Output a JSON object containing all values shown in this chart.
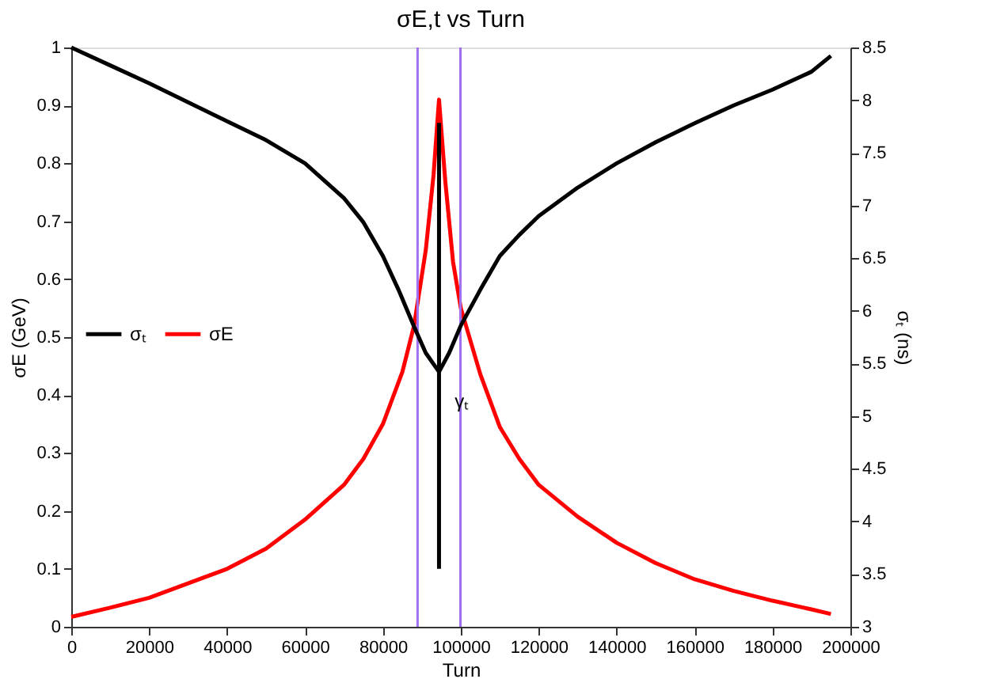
{
  "chart_data": {
    "type": "line",
    "title": "σE,t vs Turn",
    "xlabel": "Turn",
    "ylabel": "σE (GeV)",
    "y2label": "σₜ (ns)",
    "xlim": [
      0,
      200000
    ],
    "xticks": [
      0,
      20000,
      40000,
      60000,
      80000,
      100000,
      120000,
      140000,
      160000,
      180000,
      200000
    ],
    "ylim": [
      0,
      1
    ],
    "yticks": [
      0,
      0.1,
      0.2,
      0.3,
      0.4,
      0.5,
      0.6,
      0.7,
      0.8,
      0.9,
      1
    ],
    "y2lim": [
      3,
      8.5
    ],
    "y2ticks": [
      3,
      3.5,
      4,
      4.5,
      5,
      5.5,
      6,
      6.5,
      7,
      7.5,
      8,
      8.5
    ],
    "grid": false,
    "legend": "left",
    "marker": "none",
    "line_style": "solid",
    "series": [
      {
        "name": "σₜ",
        "color": "#000000",
        "axis": "y2",
        "x": [
          0,
          10000,
          20000,
          30000,
          40000,
          50000,
          60000,
          70000,
          75000,
          80000,
          84000,
          88000,
          91000,
          94400,
          97000,
          100000,
          105000,
          110000,
          115000,
          120000,
          130000,
          140000,
          150000,
          160000,
          170000,
          180000,
          190000,
          195000
        ],
        "values": [
          8.5,
          8.33,
          8.16,
          7.98,
          7.8,
          7.62,
          7.4,
          7.07,
          6.84,
          6.52,
          6.2,
          5.85,
          5.6,
          5.42,
          5.6,
          5.86,
          6.2,
          6.52,
          6.72,
          6.9,
          7.17,
          7.4,
          7.6,
          7.78,
          7.95,
          8.1,
          8.27,
          8.42
        ]
      },
      {
        "name": "σE",
        "color": "#ff0000",
        "x": [
          0,
          10000,
          20000,
          30000,
          40000,
          50000,
          60000,
          70000,
          75000,
          80000,
          85000,
          88000,
          91000,
          93000,
          94400,
          96000,
          98000,
          100000,
          105000,
          110000,
          115000,
          120000,
          130000,
          140000,
          150000,
          160000,
          170000,
          180000,
          190000,
          195000
        ],
        "values": [
          0.017,
          0.033,
          0.05,
          0.075,
          0.1,
          0.135,
          0.185,
          0.245,
          0.29,
          0.35,
          0.44,
          0.52,
          0.65,
          0.78,
          0.91,
          0.77,
          0.63,
          0.55,
          0.436,
          0.345,
          0.29,
          0.245,
          0.19,
          0.145,
          0.11,
          0.082,
          0.062,
          0.045,
          0.03,
          0.022
        ]
      },
      {
        "color": "#000000",
        "x": [
          94400,
          94400
        ],
        "values": [
          0.1,
          0.87
        ]
      }
    ],
    "ref_lines": [
      {
        "axis": "x",
        "value": 88900,
        "color": "#a070f0"
      },
      {
        "axis": "x",
        "value": 99900,
        "color": "#a070f0"
      }
    ],
    "annotations": [
      "γₜ"
    ]
  }
}
